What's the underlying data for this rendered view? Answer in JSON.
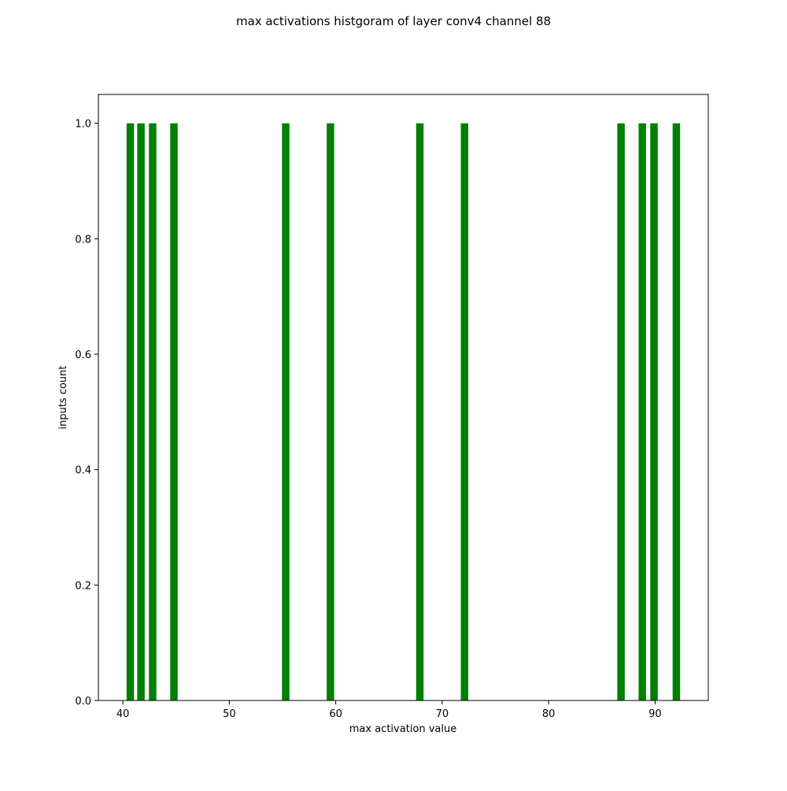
{
  "chart_data": {
    "type": "bar",
    "title": "max activations histgoram of layer conv4 channel 88",
    "xlabel": "max activation value",
    "ylabel": "inputs count",
    "x": [
      40.7,
      41.7,
      42.8,
      44.8,
      55.3,
      59.5,
      67.9,
      72.1,
      86.8,
      88.8,
      89.9,
      92.0
    ],
    "values": [
      1,
      1,
      1,
      1,
      1,
      1,
      1,
      1,
      1,
      1,
      1,
      1
    ],
    "bar_width": 0.7,
    "xlim": [
      37.7,
      95.0
    ],
    "ylim": [
      0,
      1.05
    ],
    "xticks": [
      40,
      50,
      60,
      70,
      80,
      90
    ],
    "yticks": [
      0.0,
      0.2,
      0.4,
      0.6,
      0.8,
      1.0
    ],
    "xtick_labels": [
      "40",
      "50",
      "60",
      "70",
      "80",
      "90"
    ],
    "ytick_labels": [
      "0.0",
      "0.2",
      "0.4",
      "0.6",
      "0.8",
      "1.0"
    ],
    "bar_color": "#008000",
    "grid": false,
    "legend": "none"
  }
}
